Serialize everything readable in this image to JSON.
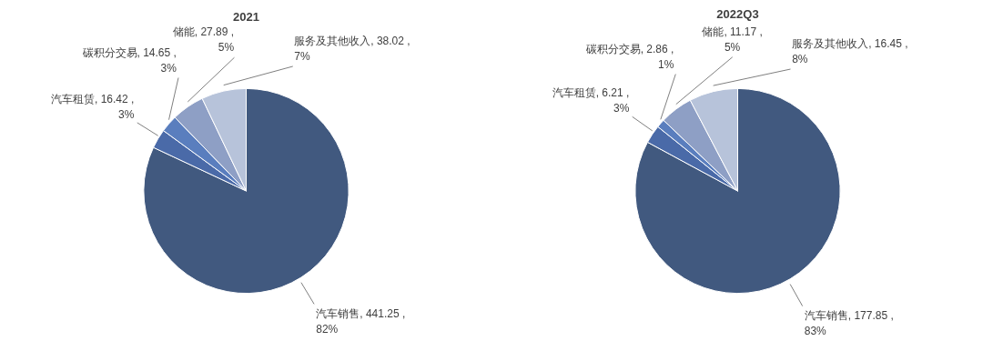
{
  "chart_data": [
    {
      "type": "pie",
      "title": "2021",
      "categories": [
        "汽车销售",
        "汽车租赁",
        "碳积分交易",
        "储能",
        "服务及其他收入"
      ],
      "values": [
        441.25,
        16.42,
        14.65,
        27.89,
        38.02
      ],
      "colors": [
        "#41597f",
        "#4a6aa8",
        "#5a7ebe",
        "#8e9fc5",
        "#b7c3da"
      ],
      "value_labels": [
        "441.25 , 82%",
        "16.42 , 3%",
        "14.65 , 3%",
        "27.89 , 5%",
        "38.02 , 7%"
      ]
    },
    {
      "type": "pie",
      "title": "2022Q3",
      "categories": [
        "汽车销售",
        "汽车租赁",
        "碳积分交易",
        "储能",
        "服务及其他收入"
      ],
      "values": [
        177.85,
        6.21,
        2.86,
        11.17,
        16.45
      ],
      "colors": [
        "#41597f",
        "#4a6aa8",
        "#5a7ebe",
        "#8e9fc5",
        "#b7c3da"
      ],
      "value_labels": [
        "177.85 , 83%",
        "6.21 , 3%",
        "2.86 , 1%",
        "11.17 , 5%",
        "16.45 , 8%"
      ]
    }
  ]
}
